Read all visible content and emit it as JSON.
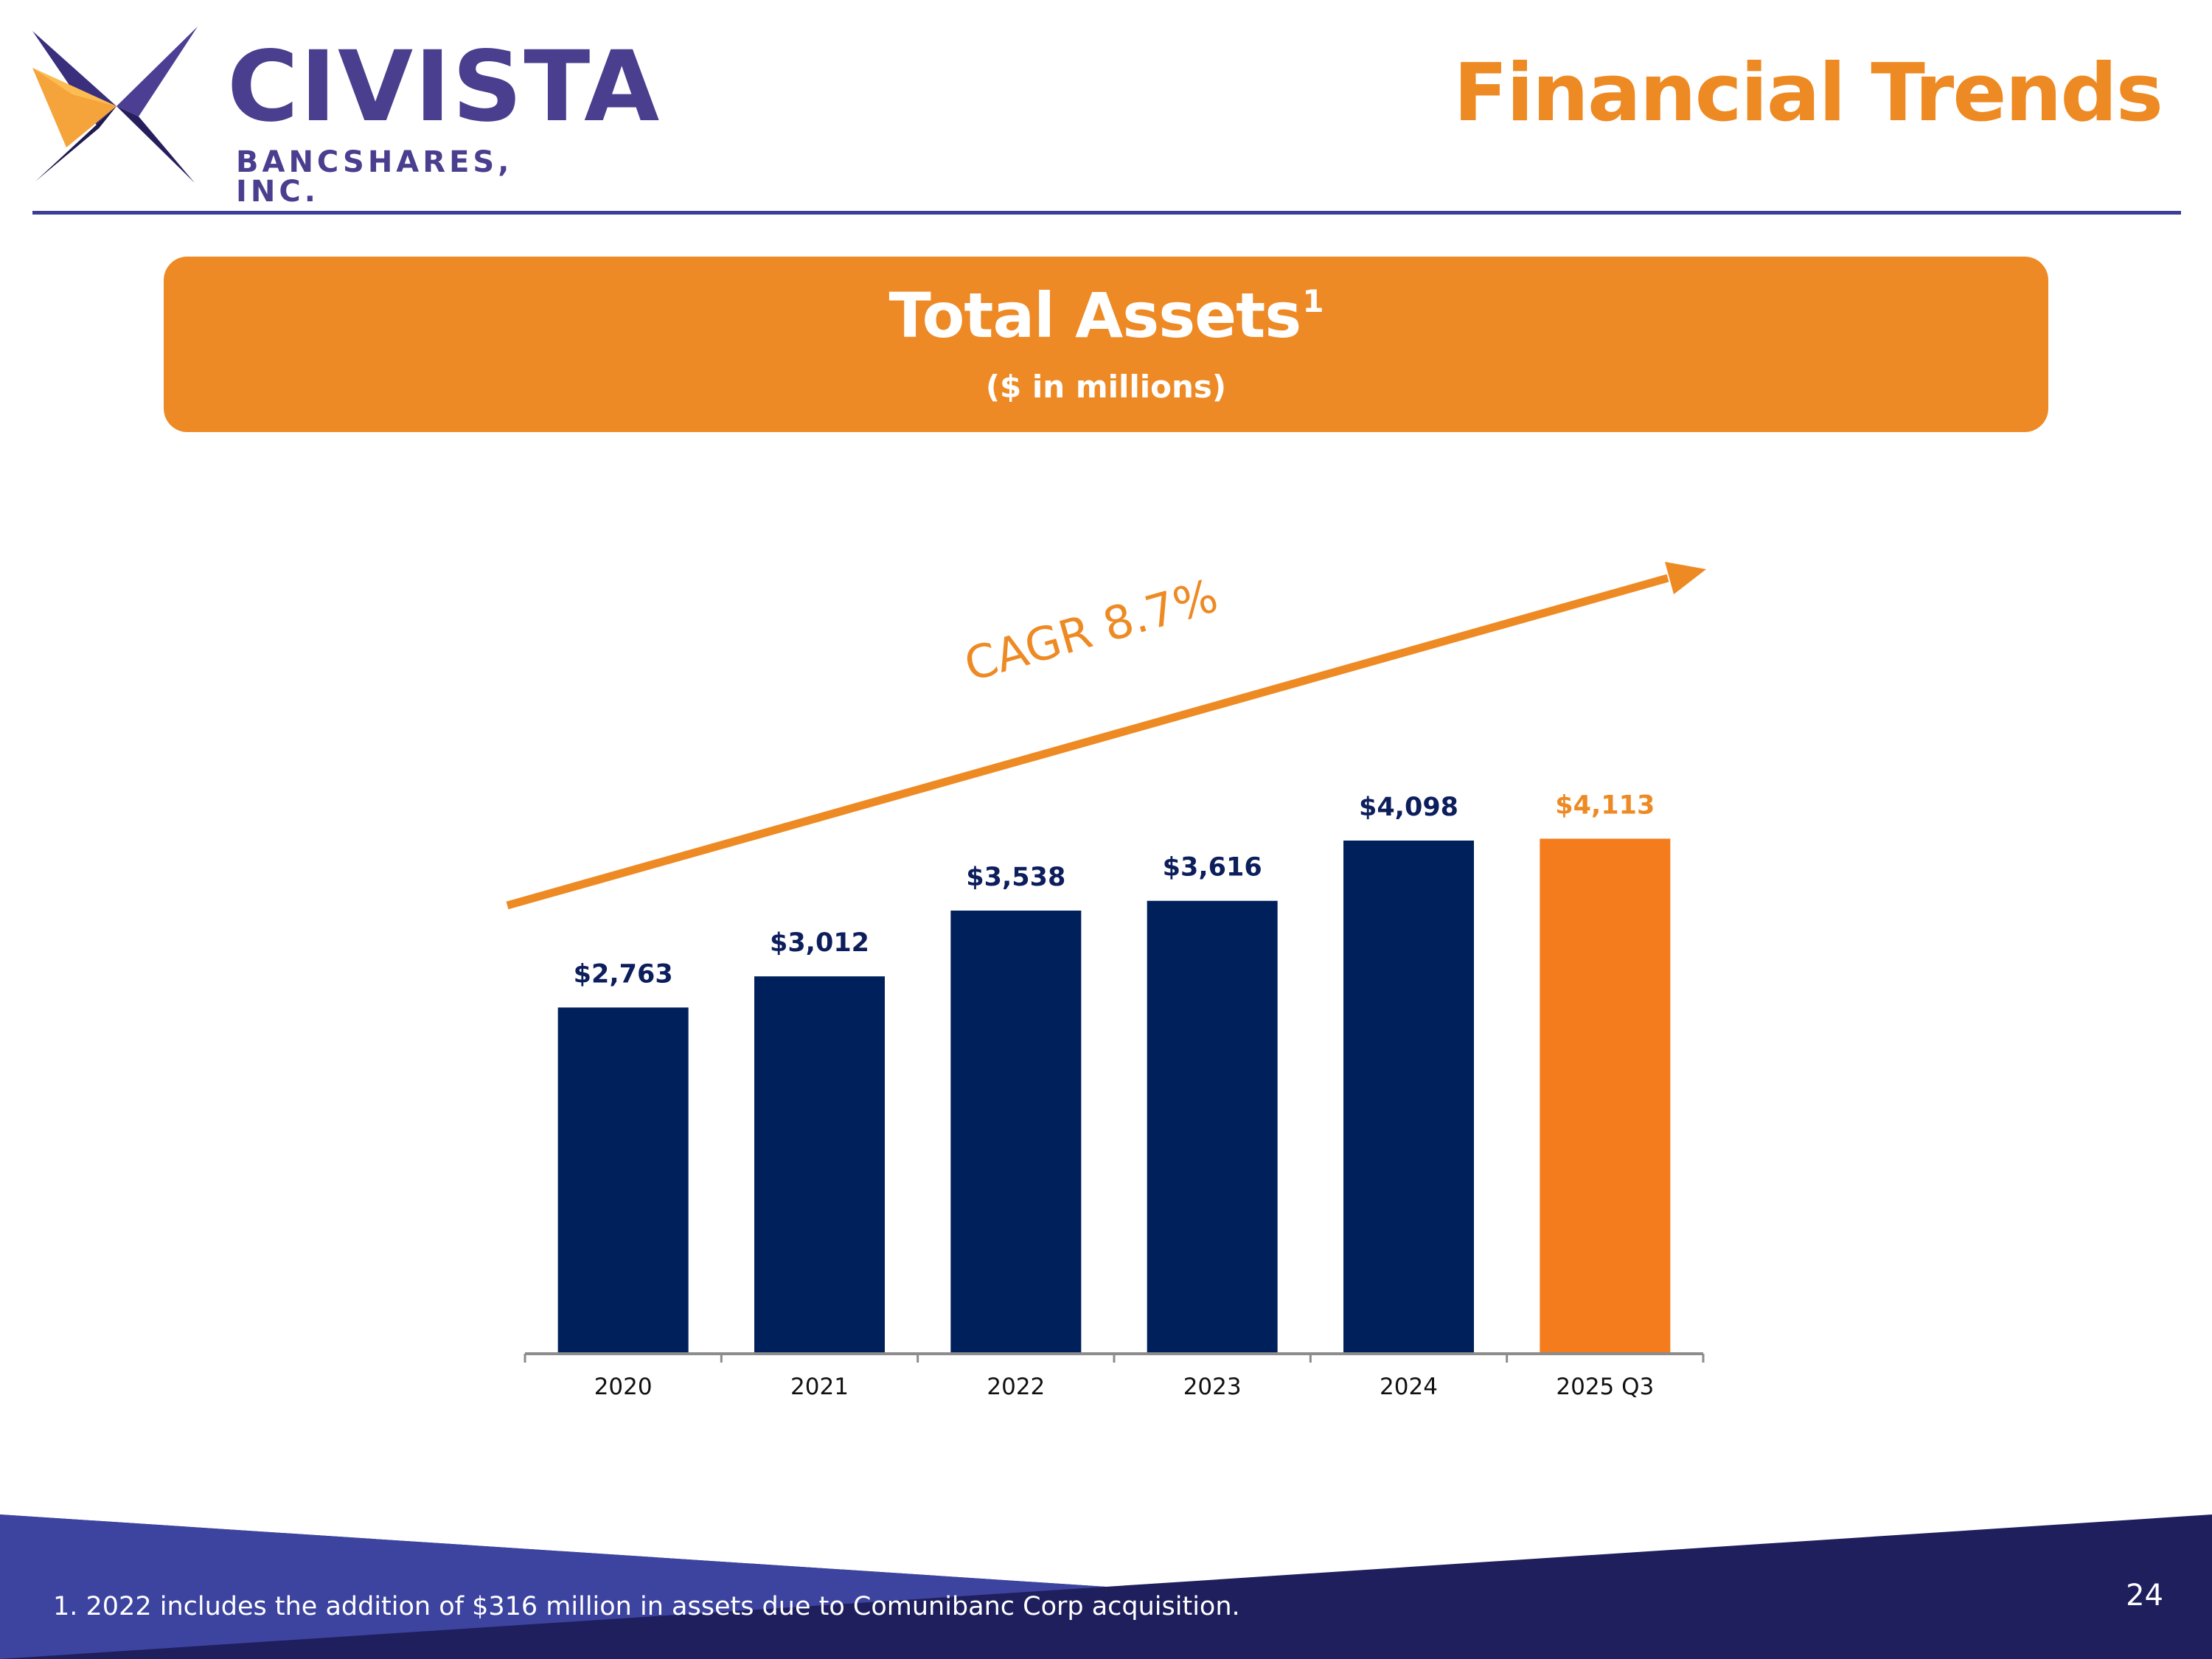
{
  "header": {
    "logo_name": "CIVISTA",
    "logo_subtitle": "BANCSHARES, INC.",
    "page_title": "Financial Trends"
  },
  "banner": {
    "title": "Total Assets",
    "superscript": "1",
    "subtitle": "($ in millions)"
  },
  "chart_data": {
    "type": "bar",
    "title": "Total Assets",
    "subtitle": "($ in millions)",
    "categories": [
      "2020",
      "2021",
      "2022",
      "2023",
      "2024",
      "2025 Q3"
    ],
    "values": [
      2763,
      3012,
      3538,
      3616,
      4098,
      4113
    ],
    "value_labels": [
      "$2,763",
      "$3,012",
      "$3,538",
      "$3,616",
      "$4,098",
      "$4,113"
    ],
    "highlight_index": 5,
    "ylim": [
      0,
      4600
    ],
    "grid": false,
    "annotation": "CAGR 8.7%",
    "colors": {
      "bar": "#00205b",
      "highlight": "#f47c1c",
      "label": "#0d1e5c",
      "highlight_label": "#ee8a23",
      "arrow": "#ee8a23",
      "axis": "#8c8c8c"
    }
  },
  "footer": {
    "footnote": "1.  2022 includes the addition of $316 million in assets due to Comunibanc Corp acquisition.",
    "page_number": "24"
  }
}
